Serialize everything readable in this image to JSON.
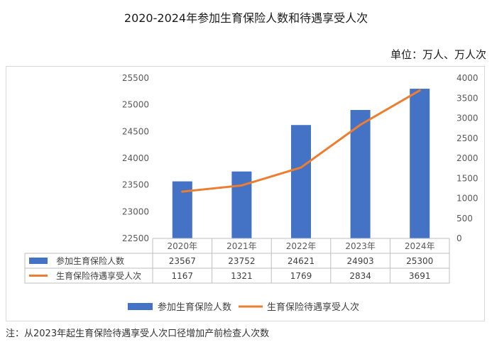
{
  "title": "2020-2024年参加生育保险人数和待遇享受人次",
  "unit": "单位：万人、万人次",
  "footnote": "注：从2023年起生育保险待遇享受人次口径增加产前检查人次数",
  "chart_data": {
    "type": "bar",
    "categories": [
      "2020年",
      "2021年",
      "2022年",
      "2023年",
      "2024年"
    ],
    "series": [
      {
        "name": "参加生育保险人数",
        "type": "bar",
        "axis": "left",
        "color": "#4472C4",
        "values": [
          23567,
          23752,
          24621,
          24903,
          25300
        ],
        "labels": [
          "23567",
          "23752",
          "24621",
          "24903",
          "25300"
        ]
      },
      {
        "name": "生育保险待遇享受人次",
        "type": "line",
        "axis": "right",
        "color": "#ED7D31",
        "values": [
          1167,
          1321,
          1769,
          2834,
          3691
        ],
        "labels": [
          "1167",
          "1321",
          "1769",
          "2834",
          "3691"
        ]
      }
    ],
    "y_left": {
      "min": 22500,
      "max": 25500,
      "ticks": [
        "22500",
        "23000",
        "23500",
        "24000",
        "24500",
        "25000",
        "25500"
      ]
    },
    "y_right": {
      "min": 0,
      "max": 4000,
      "ticks": [
        "0",
        "500",
        "1000",
        "1500",
        "2000",
        "2500",
        "3000",
        "3500",
        "4000"
      ]
    },
    "data_table": true,
    "legend": "bottom",
    "grid": false
  }
}
